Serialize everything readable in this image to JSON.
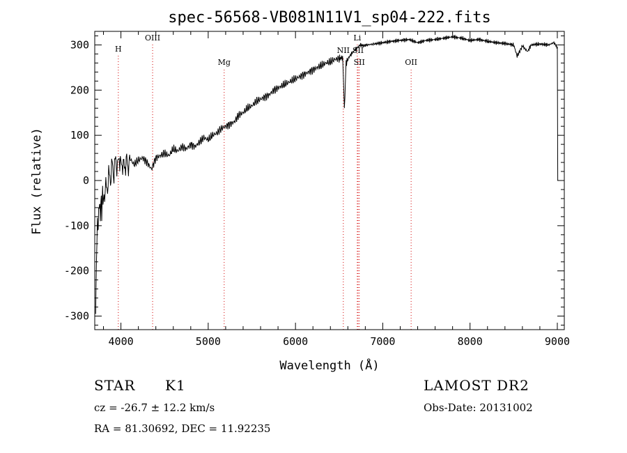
{
  "chart_data": {
    "type": "line",
    "title": "spec-56568-VB081N11V1_sp04-222.fits",
    "xlabel": "Wavelength (Å)",
    "ylabel": "Flux (relative)",
    "xlim": [
      3700,
      9080
    ],
    "ylim": [
      -330,
      330
    ],
    "xticks": [
      4000,
      5000,
      6000,
      7000,
      8000,
      9000
    ],
    "yticks": [
      -300,
      -200,
      -100,
      0,
      100,
      200,
      300
    ],
    "grid": false,
    "line_color": "#000000",
    "marker_color": "#d40000",
    "series": [
      {
        "x": [
          3710,
          3720,
          3730,
          3740,
          3750,
          3760,
          3770,
          3780,
          3790,
          3800,
          3820,
          3840,
          3860,
          3880,
          3900,
          3920,
          3940,
          3960,
          3980,
          4000,
          4020,
          4040,
          4060,
          4080,
          4100,
          4150,
          4200,
          4250,
          4300,
          4350,
          4400,
          4450,
          4500,
          4550,
          4600,
          4650,
          4700,
          4750,
          4800,
          4850,
          4900,
          4950,
          5000,
          5050,
          5100,
          5150,
          5200,
          5250,
          5300,
          5350,
          5400,
          5450,
          5500,
          5550,
          5600,
          5650,
          5700,
          5750,
          5800,
          5850,
          5900,
          5950,
          6000,
          6050,
          6100,
          6150,
          6200,
          6250,
          6300,
          6350,
          6400,
          6450,
          6500,
          6540,
          6560,
          6580,
          6620,
          6660,
          6700,
          6740,
          6780,
          6820,
          6900,
          7000,
          7100,
          7200,
          7300,
          7400,
          7500,
          7600,
          7700,
          7800,
          7900,
          8000,
          8100,
          8200,
          8300,
          8400,
          8500,
          8540,
          8600,
          8660,
          8700,
          8800,
          8900,
          8960,
          8990,
          9000,
          9005
        ],
        "y": [
          -280,
          -180,
          -90,
          -110,
          -40,
          -75,
          -50,
          -65,
          -30,
          -45,
          -15,
          -20,
          10,
          5,
          35,
          15,
          50,
          25,
          55,
          30,
          40,
          25,
          45,
          30,
          50,
          35,
          45,
          50,
          40,
          25,
          50,
          55,
          60,
          55,
          70,
          65,
          75,
          70,
          80,
          75,
          85,
          95,
          90,
          100,
          105,
          115,
          120,
          125,
          130,
          145,
          150,
          160,
          165,
          175,
          180,
          185,
          190,
          200,
          205,
          210,
          215,
          220,
          225,
          230,
          235,
          240,
          245,
          250,
          255,
          260,
          262,
          268,
          270,
          272,
          160,
          260,
          275,
          285,
          292,
          300,
          298,
          300,
          302,
          305,
          308,
          310,
          312,
          305,
          310,
          312,
          315,
          318,
          315,
          310,
          312,
          308,
          305,
          303,
          300,
          275,
          298,
          285,
          300,
          302,
          300,
          305,
          298,
          295,
          0
        ],
        "name": ""
      }
    ],
    "lines": [
      {
        "label": "H",
        "x": 3970
      },
      {
        "label": "OIII",
        "x": 4363
      },
      {
        "label": "Mg",
        "x": 5183
      },
      {
        "label": "NII",
        "x": 6548
      },
      {
        "label": "Li",
        "x": 6708
      },
      {
        "label": "SII",
        "x": 6717
      },
      {
        "label": "SII",
        "x": 6731
      },
      {
        "label": "OII",
        "x": 7325
      }
    ]
  },
  "info": {
    "class": "STAR",
    "subclass": "K1",
    "survey": "LAMOST DR2",
    "cz": "cz = -26.7 ± 12.2 km/s",
    "obs_date": "Obs-Date: 20131002",
    "coords": "RA =  81.30692, DEC =  11.92235"
  }
}
